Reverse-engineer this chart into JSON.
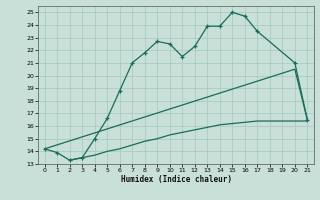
{
  "bg_color": "#c8e0d8",
  "grid_color": "#a8ccc4",
  "line_color": "#1a6b5a",
  "xlabel": "Humidex (Indice chaleur)",
  "xlim": [
    -0.5,
    21.5
  ],
  "ylim": [
    13,
    25.5
  ],
  "yticks": [
    13,
    14,
    15,
    16,
    17,
    18,
    19,
    20,
    21,
    22,
    23,
    24,
    25
  ],
  "xticks": [
    0,
    1,
    2,
    3,
    4,
    5,
    6,
    7,
    8,
    9,
    10,
    11,
    12,
    13,
    14,
    15,
    16,
    17,
    18,
    19,
    20,
    21
  ],
  "curve1_x": [
    0,
    1,
    2,
    3,
    4,
    5,
    6,
    7,
    8,
    9,
    10,
    11,
    12,
    13,
    14,
    15,
    16,
    17,
    20,
    21
  ],
  "curve1_y": [
    14.2,
    13.9,
    13.3,
    13.5,
    15.0,
    16.6,
    18.8,
    21.0,
    21.8,
    22.7,
    22.5,
    21.5,
    22.3,
    23.9,
    23.9,
    25.0,
    24.7,
    23.5,
    21.0,
    16.5
  ],
  "curve2_x": [
    0,
    20,
    21
  ],
  "curve2_y": [
    14.2,
    20.5,
    16.5
  ],
  "curve3_x": [
    2,
    3,
    4,
    5,
    6,
    7,
    8,
    9,
    10,
    11,
    12,
    13,
    14,
    15,
    16,
    17,
    18,
    19,
    20,
    21
  ],
  "curve3_y": [
    13.3,
    13.5,
    13.7,
    14.0,
    14.2,
    14.5,
    14.8,
    15.0,
    15.3,
    15.5,
    15.7,
    15.9,
    16.1,
    16.2,
    16.3,
    16.4,
    16.4,
    16.4,
    16.4,
    16.4
  ]
}
